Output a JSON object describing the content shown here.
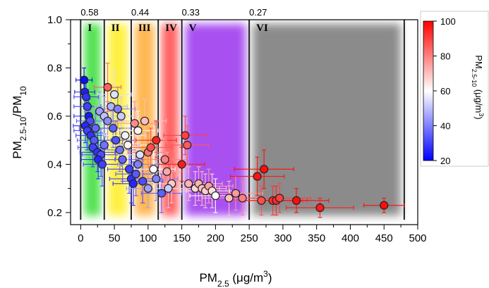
{
  "chart_data": {
    "type": "scatter",
    "xlabel": {
      "base": "PM",
      "sub": "2.5",
      "suffix": " (μg/m",
      "sup": "3",
      "close": ")"
    },
    "ylabel": {
      "base": "PM",
      "sub1": "2.5-10",
      "mid": "/PM",
      "sub2": "10"
    },
    "xlim": [
      -15,
      500
    ],
    "ylim": [
      0.15,
      1.0
    ],
    "x_ticks": [
      "0",
      "50",
      "100",
      "150",
      "200",
      "250",
      "300",
      "350",
      "400",
      "450",
      "500"
    ],
    "x_tick_values": [
      0,
      50,
      100,
      150,
      200,
      250,
      300,
      350,
      400,
      450,
      500
    ],
    "y_ticks": [
      "0.2",
      "0.4",
      "0.6",
      "0.8",
      "1.0"
    ],
    "y_tick_values": [
      0.2,
      0.4,
      0.6,
      0.8,
      1.0
    ],
    "regions": [
      {
        "label": "I",
        "x0": 0,
        "x1": 35,
        "color": "#33dd33"
      },
      {
        "label": "II",
        "x0": 35,
        "x1": 75,
        "color": "#ffee22"
      },
      {
        "label": "III",
        "x0": 75,
        "x1": 115,
        "color": "#ffaa33"
      },
      {
        "label": "IV",
        "x0": 115,
        "x1": 150,
        "color": "#ff4444"
      },
      {
        "label": "V",
        "x0": 150,
        "x1": 250,
        "color": "#9933ee"
      },
      {
        "label": "VI",
        "x0": 250,
        "x1": 480,
        "color": "#777777"
      }
    ],
    "boundary_labels": [
      {
        "text": "0.58",
        "x": 0
      },
      {
        "text": "0.44",
        "x": 75
      },
      {
        "text": "0.33",
        "x": 150
      },
      {
        "text": "0.27",
        "x": 250
      }
    ],
    "colorbar": {
      "label": {
        "base": "PM",
        "sub": "2.5-10",
        "suffix": " (μg/m",
        "sup": "3",
        "close": ")"
      },
      "range": [
        20,
        100
      ],
      "ticks": [
        "20",
        "40",
        "60",
        "80",
        "100"
      ],
      "tick_values": [
        20,
        40,
        60,
        80,
        100
      ],
      "colors": [
        "#0000ff",
        "#ffffff",
        "#ff0000"
      ]
    },
    "points": [
      {
        "x": 5,
        "y": 0.75,
        "c": 22,
        "ex": 12,
        "ey": 0.05
      },
      {
        "x": 6,
        "y": 0.7,
        "c": 25,
        "ex": 15,
        "ey": 0.05
      },
      {
        "x": 8,
        "y": 0.68,
        "c": 28,
        "ex": 18,
        "ey": 0.06
      },
      {
        "x": 10,
        "y": 0.64,
        "c": 30,
        "ex": 20,
        "ey": 0.07
      },
      {
        "x": 12,
        "y": 0.6,
        "c": 24,
        "ex": 22,
        "ey": 0.07
      },
      {
        "x": 14,
        "y": 0.58,
        "c": 32,
        "ex": 20,
        "ey": 0.06
      },
      {
        "x": 7,
        "y": 0.56,
        "c": 26,
        "ex": 18,
        "ey": 0.07
      },
      {
        "x": 10,
        "y": 0.54,
        "c": 30,
        "ex": 20,
        "ey": 0.08
      },
      {
        "x": 15,
        "y": 0.52,
        "c": 28,
        "ex": 22,
        "ey": 0.07
      },
      {
        "x": 20,
        "y": 0.5,
        "c": 34,
        "ex": 25,
        "ey": 0.08
      },
      {
        "x": 22,
        "y": 0.55,
        "c": 36,
        "ex": 24,
        "ey": 0.07
      },
      {
        "x": 18,
        "y": 0.47,
        "c": 30,
        "ex": 22,
        "ey": 0.08
      },
      {
        "x": 25,
        "y": 0.45,
        "c": 28,
        "ex": 26,
        "ey": 0.08
      },
      {
        "x": 30,
        "y": 0.44,
        "c": 32,
        "ex": 28,
        "ey": 0.09
      },
      {
        "x": 26,
        "y": 0.42,
        "c": 26,
        "ex": 25,
        "ey": 0.08
      },
      {
        "x": 32,
        "y": 0.4,
        "c": 30,
        "ex": 28,
        "ey": 0.09
      },
      {
        "x": 35,
        "y": 0.48,
        "c": 38,
        "ex": 26,
        "ey": 0.07
      },
      {
        "x": 28,
        "y": 0.62,
        "c": 45,
        "ex": 22,
        "ey": 0.08
      },
      {
        "x": 35,
        "y": 0.6,
        "c": 50,
        "ex": 25,
        "ey": 0.08
      },
      {
        "x": 40,
        "y": 0.58,
        "c": 42,
        "ex": 26,
        "ey": 0.08
      },
      {
        "x": 45,
        "y": 0.64,
        "c": 48,
        "ex": 24,
        "ey": 0.09
      },
      {
        "x": 50,
        "y": 0.69,
        "c": 55,
        "ex": 25,
        "ey": 0.1
      },
      {
        "x": 55,
        "y": 0.63,
        "c": 40,
        "ex": 26,
        "ey": 0.09
      },
      {
        "x": 60,
        "y": 0.6,
        "c": 52,
        "ex": 28,
        "ey": 0.08
      },
      {
        "x": 40,
        "y": 0.72,
        "c": 85,
        "ex": 20,
        "ey": 0.1
      },
      {
        "x": 48,
        "y": 0.55,
        "c": 35,
        "ex": 27,
        "ey": 0.08
      },
      {
        "x": 52,
        "y": 0.5,
        "c": 33,
        "ex": 28,
        "ey": 0.08
      },
      {
        "x": 58,
        "y": 0.46,
        "c": 38,
        "ex": 30,
        "ey": 0.09
      },
      {
        "x": 62,
        "y": 0.42,
        "c": 36,
        "ex": 30,
        "ey": 0.09
      },
      {
        "x": 66,
        "y": 0.52,
        "c": 58,
        "ex": 30,
        "ey": 0.08
      },
      {
        "x": 70,
        "y": 0.48,
        "c": 62,
        "ex": 30,
        "ey": 0.08
      },
      {
        "x": 72,
        "y": 0.38,
        "c": 30,
        "ex": 32,
        "ey": 0.1
      },
      {
        "x": 75,
        "y": 0.34,
        "c": 28,
        "ex": 32,
        "ey": 0.1
      },
      {
        "x": 78,
        "y": 0.32,
        "c": 26,
        "ex": 30,
        "ey": 0.09
      },
      {
        "x": 82,
        "y": 0.36,
        "c": 34,
        "ex": 30,
        "ey": 0.09
      },
      {
        "x": 85,
        "y": 0.4,
        "c": 40,
        "ex": 30,
        "ey": 0.08
      },
      {
        "x": 88,
        "y": 0.44,
        "c": 55,
        "ex": 32,
        "ey": 0.08
      },
      {
        "x": 80,
        "y": 0.57,
        "c": 78,
        "ex": 30,
        "ey": 0.09
      },
      {
        "x": 85,
        "y": 0.54,
        "c": 62,
        "ex": 30,
        "ey": 0.08
      },
      {
        "x": 95,
        "y": 0.58,
        "c": 70,
        "ex": 32,
        "ey": 0.09
      },
      {
        "x": 92,
        "y": 0.33,
        "c": 32,
        "ex": 30,
        "ey": 0.09
      },
      {
        "x": 100,
        "y": 0.3,
        "c": 45,
        "ex": 32,
        "ey": 0.08
      },
      {
        "x": 100,
        "y": 0.45,
        "c": 82,
        "ex": 30,
        "ey": 0.08
      },
      {
        "x": 104,
        "y": 0.47,
        "c": 88,
        "ex": 32,
        "ey": 0.08
      },
      {
        "x": 108,
        "y": 0.38,
        "c": 60,
        "ex": 32,
        "ey": 0.08
      },
      {
        "x": 112,
        "y": 0.34,
        "c": 40,
        "ex": 32,
        "ey": 0.09
      },
      {
        "x": 112,
        "y": 0.5,
        "c": 95,
        "ex": 30,
        "ey": 0.08
      },
      {
        "x": 120,
        "y": 0.28,
        "c": 35,
        "ex": 30,
        "ey": 0.08
      },
      {
        "x": 125,
        "y": 0.42,
        "c": 80,
        "ex": 32,
        "ey": 0.08
      },
      {
        "x": 128,
        "y": 0.37,
        "c": 74,
        "ex": 32,
        "ey": 0.08
      },
      {
        "x": 135,
        "y": 0.32,
        "c": 68,
        "ex": 34,
        "ey": 0.08
      },
      {
        "x": 130,
        "y": 0.3,
        "c": 52,
        "ex": 30,
        "ey": 0.08
      },
      {
        "x": 150,
        "y": 0.4,
        "c": 96,
        "ex": 34,
        "ey": 0.07
      },
      {
        "x": 155,
        "y": 0.52,
        "c": 90,
        "ex": 32,
        "ey": 0.08
      },
      {
        "x": 158,
        "y": 0.48,
        "c": 86,
        "ex": 32,
        "ey": 0.08
      },
      {
        "x": 160,
        "y": 0.32,
        "c": 72,
        "ex": 34,
        "ey": 0.07
      },
      {
        "x": 170,
        "y": 0.3,
        "c": 66,
        "ex": 36,
        "ey": 0.07
      },
      {
        "x": 175,
        "y": 0.32,
        "c": 72,
        "ex": 35,
        "ey": 0.07
      },
      {
        "x": 180,
        "y": 0.3,
        "c": 70,
        "ex": 36,
        "ey": 0.07
      },
      {
        "x": 185,
        "y": 0.29,
        "c": 68,
        "ex": 36,
        "ey": 0.07
      },
      {
        "x": 190,
        "y": 0.31,
        "c": 75,
        "ex": 36,
        "ey": 0.07
      },
      {
        "x": 195,
        "y": 0.29,
        "c": 65,
        "ex": 38,
        "ey": 0.07
      },
      {
        "x": 200,
        "y": 0.27,
        "c": 60,
        "ex": 38,
        "ey": 0.07
      },
      {
        "x": 220,
        "y": 0.26,
        "c": 70,
        "ex": 40,
        "ey": 0.07
      },
      {
        "x": 230,
        "y": 0.28,
        "c": 76,
        "ex": 40,
        "ey": 0.07
      },
      {
        "x": 240,
        "y": 0.26,
        "c": 80,
        "ex": 40,
        "ey": 0.07
      },
      {
        "x": 262,
        "y": 0.35,
        "c": 97,
        "ex": 40,
        "ey": 0.08
      },
      {
        "x": 268,
        "y": 0.25,
        "c": 88,
        "ex": 42,
        "ey": 0.06
      },
      {
        "x": 272,
        "y": 0.38,
        "c": 98,
        "ex": 44,
        "ey": 0.08
      },
      {
        "x": 285,
        "y": 0.25,
        "c": 92,
        "ex": 44,
        "ey": 0.06
      },
      {
        "x": 290,
        "y": 0.25,
        "c": 94,
        "ex": 46,
        "ey": 0.06
      },
      {
        "x": 295,
        "y": 0.26,
        "c": 90,
        "ex": 46,
        "ey": 0.06
      },
      {
        "x": 320,
        "y": 0.25,
        "c": 98,
        "ex": 48,
        "ey": 0.05
      },
      {
        "x": 355,
        "y": 0.22,
        "c": 96,
        "ex": 50,
        "ey": 0.04
      },
      {
        "x": 450,
        "y": 0.23,
        "c": 98,
        "ex": 30,
        "ey": 0.03
      }
    ]
  }
}
